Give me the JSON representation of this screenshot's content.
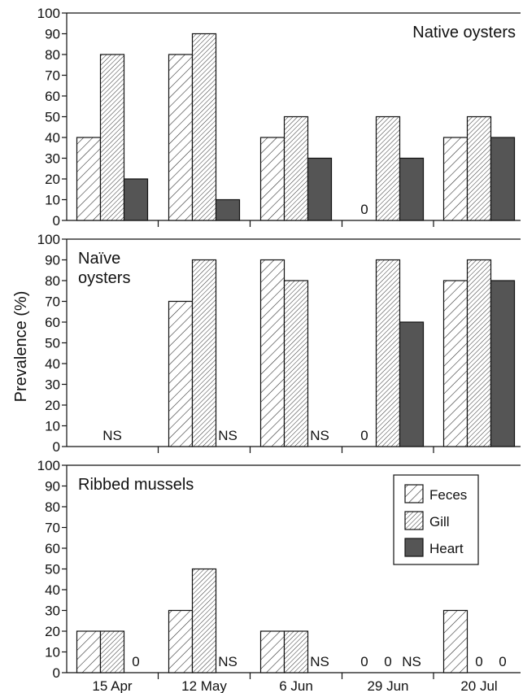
{
  "chart_data": {
    "type": "bar",
    "ylabel": "Prevalence (%)",
    "ylim": [
      0,
      100
    ],
    "yticks": [
      0,
      10,
      20,
      30,
      40,
      50,
      60,
      70,
      80,
      90,
      100
    ],
    "categories": [
      "15 Apr",
      "12 May",
      "6 Jun",
      "29 Jun",
      "20 Jul"
    ],
    "legend": {
      "position": "right",
      "entries": [
        {
          "name": "Feces",
          "color": "#ffffff",
          "pattern": "diagonal-hatch"
        },
        {
          "name": "Gill",
          "color": "#ffffff",
          "pattern": "dense-diagonal-hatch"
        },
        {
          "name": "Heart",
          "color": "#555555",
          "pattern": "solid"
        }
      ]
    },
    "panels": [
      {
        "title": "Native oysters",
        "series": [
          {
            "name": "Feces",
            "values": [
              40,
              80,
              40,
              0,
              40
            ]
          },
          {
            "name": "Gill",
            "values": [
              80,
              90,
              50,
              50,
              50
            ]
          },
          {
            "name": "Heart",
            "values": [
              20,
              10,
              30,
              30,
              40
            ]
          }
        ],
        "annotations": [
          {
            "category": "29 Jun",
            "series": "Feces",
            "text": "0"
          }
        ]
      },
      {
        "title": "Naïve\noysters",
        "series": [
          {
            "name": "Feces",
            "values": [
              null,
              70,
              90,
              0,
              80
            ]
          },
          {
            "name": "Gill",
            "values": [
              null,
              90,
              80,
              90,
              90
            ]
          },
          {
            "name": "Heart",
            "values": [
              null,
              null,
              null,
              60,
              80
            ]
          }
        ],
        "annotations": [
          {
            "category": "15 Apr",
            "series": "Gill",
            "text": "NS"
          },
          {
            "category": "12 May",
            "series": "Heart",
            "text": "NS"
          },
          {
            "category": "6 Jun",
            "series": "Heart",
            "text": "NS"
          },
          {
            "category": "29 Jun",
            "series": "Feces",
            "text": "0"
          }
        ]
      },
      {
        "title": "Ribbed mussels",
        "series": [
          {
            "name": "Feces",
            "values": [
              20,
              30,
              20,
              0,
              30
            ]
          },
          {
            "name": "Gill",
            "values": [
              20,
              50,
              20,
              0,
              0
            ]
          },
          {
            "name": "Heart",
            "values": [
              0,
              null,
              null,
              null,
              0
            ]
          }
        ],
        "annotations": [
          {
            "category": "15 Apr",
            "series": "Heart",
            "text": "0"
          },
          {
            "category": "12 May",
            "series": "Heart",
            "text": "NS"
          },
          {
            "category": "6 Jun",
            "series": "Heart",
            "text": "NS"
          },
          {
            "category": "29 Jun",
            "series": "Feces",
            "text": "0"
          },
          {
            "category": "29 Jun",
            "series": "Gill",
            "text": "0"
          },
          {
            "category": "29 Jun",
            "series": "Heart",
            "text": "NS"
          },
          {
            "category": "20 Jul",
            "series": "Gill",
            "text": "0"
          },
          {
            "category": "20 Jul",
            "series": "Heart",
            "text": "0"
          }
        ]
      }
    ]
  }
}
